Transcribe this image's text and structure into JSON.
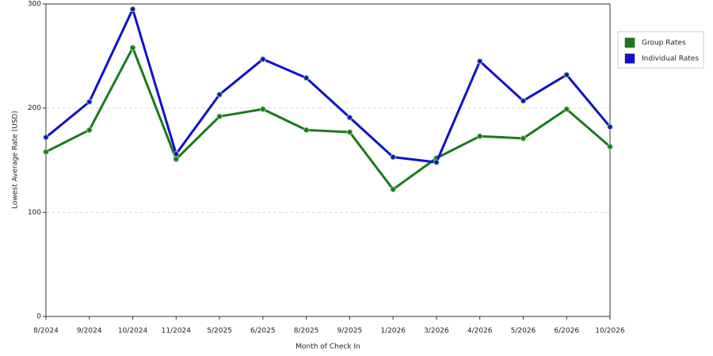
{
  "chart_data": {
    "type": "line",
    "x_label": "Month of Check In",
    "y_label": "Lowest Average Rate (USD)",
    "categories": [
      "8/2024",
      "9/2024",
      "10/2024",
      "11/2024",
      "5/2025",
      "6/2025",
      "8/2025",
      "9/2025",
      "1/2026",
      "3/2026",
      "4/2026",
      "5/2026",
      "6/2026",
      "10/2026"
    ],
    "series": [
      {
        "name": "Group Rates",
        "color": "#1a7a1a",
        "values": [
          158,
          179,
          258,
          151,
          192,
          199,
          179,
          177,
          122,
          152,
          173,
          171,
          199,
          163
        ]
      },
      {
        "name": "Individual Rates",
        "color": "#1010cc",
        "values": [
          172,
          206,
          295,
          156,
          213,
          247,
          229,
          191,
          153,
          148,
          245,
          207,
          232,
          182
        ]
      }
    ],
    "ylim": [
      0,
      300
    ],
    "yticks": [
      0,
      100,
      200,
      300
    ],
    "grid": true,
    "legend": "right"
  }
}
